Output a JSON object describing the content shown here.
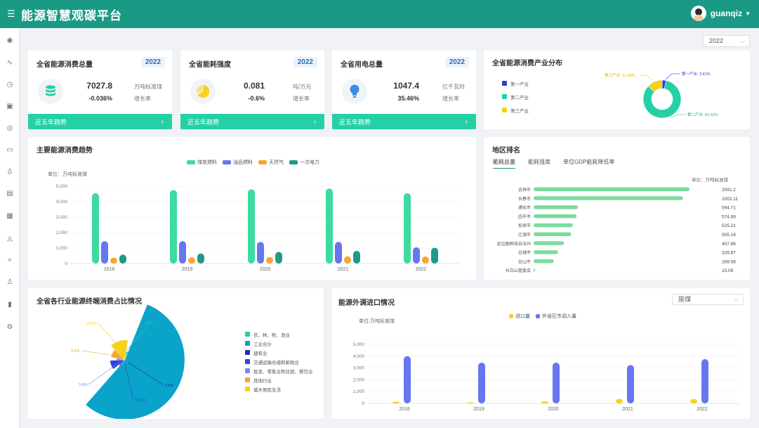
{
  "app": {
    "title": "能源智慧观碳平台",
    "user": "guanqiz"
  },
  "year_select": {
    "value": "2022"
  },
  "kpis": [
    {
      "title": "全省能源消费总量",
      "year": "2022",
      "value": "7027.8",
      "change": "-0.036%",
      "unit": "万吨标准煤",
      "rate_label": "增长率",
      "trend_label": "近五年趋势",
      "icon": "database-icon",
      "color": "#26d0a6"
    },
    {
      "title": "全省能耗强度",
      "year": "2022",
      "value": "0.081",
      "change": "-0.6%",
      "unit": "吨/万元",
      "rate_label": "增长率",
      "trend_label": "近五年趋势",
      "icon": "pie-chart-icon",
      "color": "#f8d11c"
    },
    {
      "title": "全省用电总量",
      "year": "2022",
      "value": "1047.4",
      "change": "35.46%",
      "unit": "亿千瓦时",
      "rate_label": "增长率",
      "trend_label": "近五年趋势",
      "icon": "lightbulb-icon",
      "color": "#3a8ee6"
    }
  ],
  "industry_dist": {
    "title": "全省能源消费产业分布",
    "legend": [
      "第一产业",
      "第二产业",
      "第三产业"
    ],
    "labels": [
      "第一产业: 3.41%",
      "第二产业: 83.63%",
      "第三产业: 12.96%"
    ],
    "colors": [
      "#2e3fd6",
      "#26d0a6",
      "#f8d11c"
    ]
  },
  "main_trend": {
    "title": "主要能源消费趋势",
    "unit": "单位：万吨标准煤",
    "legend": [
      "煤炭燃料",
      "油品燃料",
      "天然气",
      "一次电力"
    ],
    "colors": [
      "#3ddba0",
      "#6676f0",
      "#f5a531",
      "#1f9a8a"
    ]
  },
  "region_rank": {
    "title": "地区排名",
    "tabs": [
      "能耗总量",
      "能耗强度",
      "单位GDP能耗降低率"
    ],
    "unit": "单位：万吨标准煤",
    "rows": [
      {
        "name": "吉林市",
        "value": "2091.2"
      },
      {
        "name": "长春市",
        "value": "2002.11"
      },
      {
        "name": "通化市",
        "value": "594.71"
      },
      {
        "name": "四平市",
        "value": "574.89"
      },
      {
        "name": "松原市",
        "value": "525.21"
      },
      {
        "name": "辽源市",
        "value": "505.18"
      },
      {
        "name": "延边朝鲜族自治州",
        "value": "407.86"
      },
      {
        "name": "白城市",
        "value": "326.87"
      },
      {
        "name": "白山市",
        "value": "269.58"
      },
      {
        "name": "长白山管委会",
        "value": "15.09"
      }
    ]
  },
  "sector_share": {
    "title": "全省各行业能源终端消费占比情况",
    "legend": [
      "农、林、牧、渔业",
      "工业合计",
      "建筑业",
      "交通运输仓储和邮政业",
      "批发、零售业和住宿、餐饮业",
      "其他行业",
      "城乡居民生活"
    ],
    "colors": [
      "#26d0a6",
      "#0aa3c9",
      "#1e2fb8",
      "#2f45e0",
      "#7c86f0",
      "#f5a531",
      "#f8d11c"
    ],
    "labels": [
      "3.7%",
      "55.3%",
      "2.8%",
      "10.1%",
      "3.6%",
      "9.4%",
      "15.0%"
    ]
  },
  "import_export": {
    "title": "能源外调进口情况",
    "select": "原煤",
    "unit": "单位:万吨标准煤",
    "legend": [
      "进口量",
      "外省区市调入量"
    ],
    "colors": [
      "#f8d11c",
      "#6676f0"
    ]
  },
  "chart_data": [
    {
      "type": "bar",
      "title": "主要能源消费趋势",
      "ylabel": "单位：万吨标准煤",
      "categories": [
        "2018",
        "2019",
        "2020",
        "2021",
        "2022"
      ],
      "ylim": [
        0,
        5000
      ],
      "yticks": [
        "0",
        "1,000",
        "2,000",
        "3,000",
        "4,000",
        "5,000"
      ],
      "series": [
        {
          "name": "煤炭燃料",
          "values": [
            4550,
            4750,
            4800,
            4850,
            4550
          ]
        },
        {
          "name": "油品燃料",
          "values": [
            1450,
            1450,
            1400,
            1400,
            1050
          ]
        },
        {
          "name": "天然气",
          "values": [
            380,
            400,
            420,
            470,
            460
          ]
        },
        {
          "name": "一次电力",
          "values": [
            580,
            650,
            750,
            820,
            1020
          ]
        }
      ]
    },
    {
      "type": "bar",
      "title": "地区排名",
      "categories": [
        "吉林市",
        "长春市",
        "通化市",
        "四平市",
        "松原市",
        "辽源市",
        "延边朝鲜族自治州",
        "白城市",
        "白山市",
        "长白山管委会"
      ],
      "values": [
        2091.2,
        2002.11,
        594.71,
        574.89,
        525.21,
        505.18,
        407.86,
        326.87,
        269.58,
        15.09
      ]
    },
    {
      "type": "pie",
      "title": "全省能源消费产业分布",
      "categories": [
        "第一产业",
        "第二产业",
        "第三产业"
      ],
      "values": [
        3.41,
        83.63,
        12.96
      ]
    },
    {
      "type": "pie",
      "title": "全省各行业能源终端消费占比情况",
      "categories": [
        "农、林、牧、渔业",
        "工业合计",
        "建筑业",
        "交通运输仓储和邮政业",
        "批发、零售业和住宿、餐饮业",
        "其他行业",
        "城乡居民生活"
      ],
      "values": [
        3.7,
        55.3,
        2.8,
        10.1,
        3.6,
        9.4,
        15.0
      ]
    },
    {
      "type": "bar",
      "title": "能源外调进口情况",
      "ylabel": "单位:万吨标准煤",
      "categories": [
        "2018",
        "2019",
        "2020",
        "2021",
        "2022"
      ],
      "ylim": [
        0,
        5000
      ],
      "yticks": [
        "0",
        "1,000",
        "2,000",
        "3,000",
        "4,000",
        "5,000"
      ],
      "series": [
        {
          "name": "进口量",
          "values": [
            150,
            100,
            180,
            380,
            380
          ]
        },
        {
          "name": "外省区市调入量",
          "values": [
            4000,
            3450,
            3450,
            3250,
            3750
          ]
        }
      ]
    }
  ]
}
